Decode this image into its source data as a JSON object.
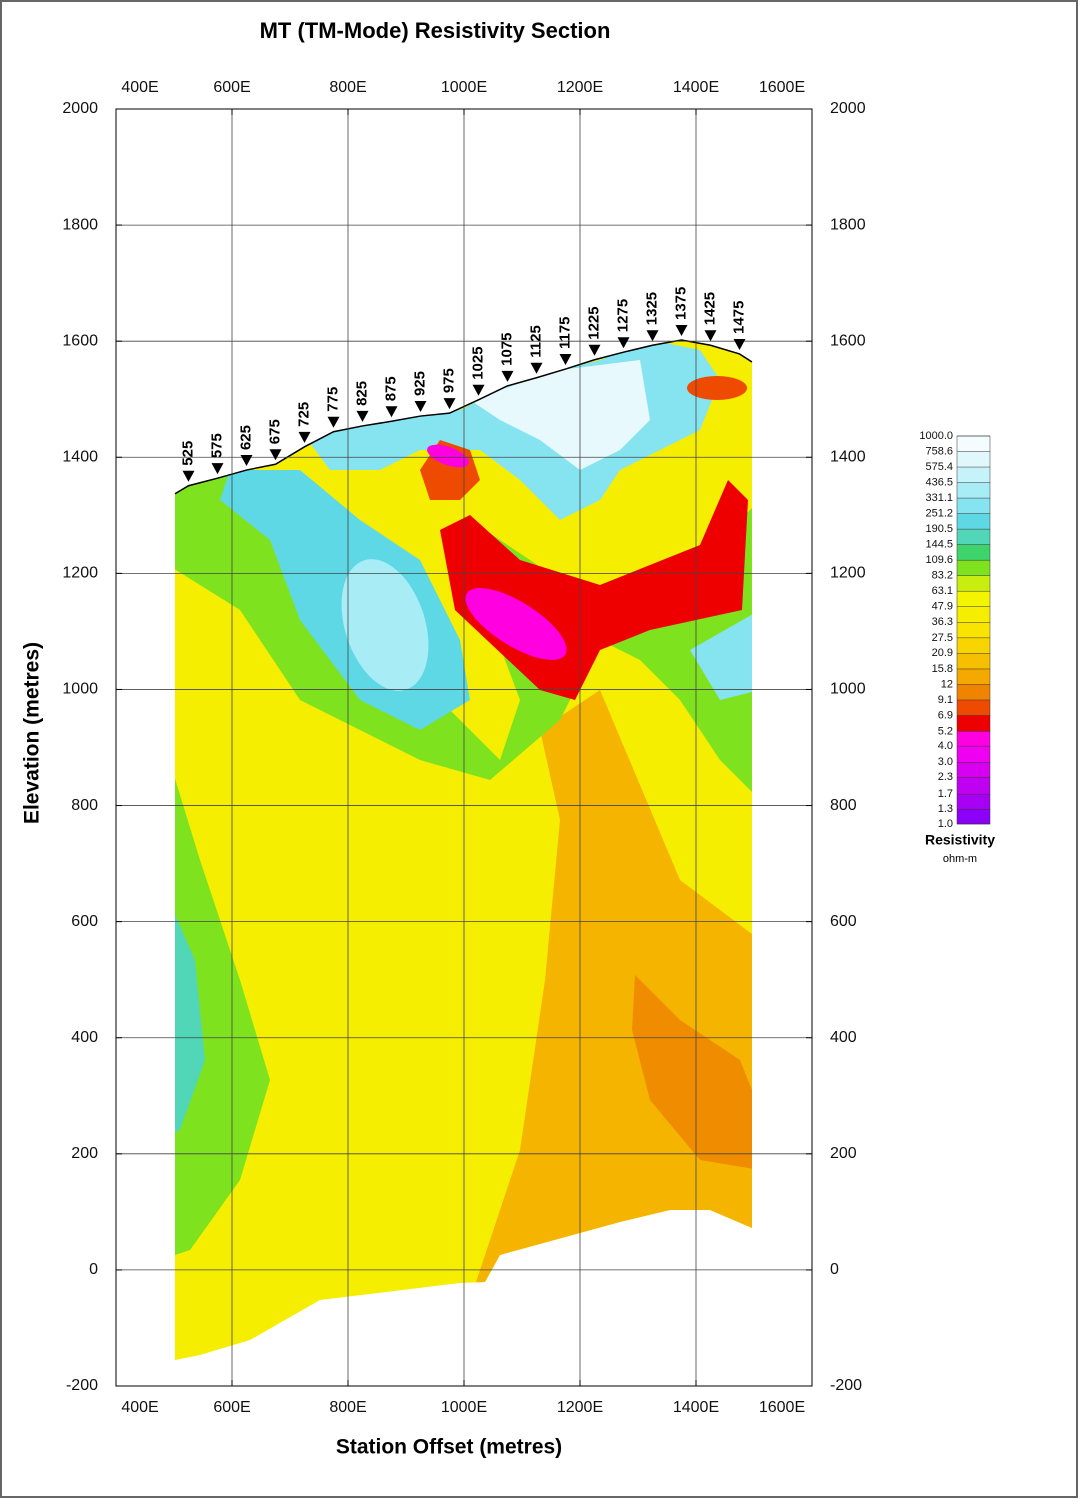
{
  "chart_data": {
    "type": "contour",
    "title": "MT (TM-Mode) Resistivity Section",
    "xlabel": "Station Offset (metres)",
    "ylabel": "Elevation (metres)",
    "xlim": [
      400,
      1600
    ],
    "ylim": [
      -200,
      2000
    ],
    "xticks": [
      {
        "value": 400,
        "label": "400E"
      },
      {
        "value": 600,
        "label": "600E"
      },
      {
        "value": 800,
        "label": "800E"
      },
      {
        "value": 1000,
        "label": "1000E"
      },
      {
        "value": 1200,
        "label": "1200E"
      },
      {
        "value": 1400,
        "label": "1400E"
      },
      {
        "value": 1600,
        "label": "1600E"
      }
    ],
    "yticks": [
      -200,
      0,
      200,
      400,
      600,
      800,
      1000,
      1200,
      1400,
      1600,
      1800,
      2000
    ],
    "grid": true,
    "stations": {
      "values": [
        525,
        575,
        625,
        675,
        725,
        775,
        825,
        875,
        925,
        975,
        1025,
        1075,
        1125,
        1175,
        1225,
        1275,
        1325,
        1375,
        1425,
        1475
      ],
      "elevation": [
        1351,
        1364,
        1378,
        1388,
        1418,
        1444,
        1454,
        1462,
        1471,
        1476,
        1499,
        1523,
        1537,
        1552,
        1568,
        1581,
        1593,
        1602,
        1593,
        1578
      ]
    },
    "colorbar": {
      "label": "Resistivity",
      "unit": "ohm-m",
      "scale": "log",
      "levels": [
        {
          "value": 1000,
          "label": "1000.0"
        },
        758.6,
        575.4,
        436.5,
        331.1,
        251.2,
        190.5,
        144.5,
        109.6,
        83.2,
        63.1,
        47.9,
        36.3,
        27.5,
        20.9,
        15.8,
        12.0,
        9.1,
        6.9,
        5.2,
        {
          "value": 4,
          "label": "4.0"
        },
        {
          "value": 3,
          "label": "3.0"
        },
        2.3,
        1.7,
        1.3,
        {
          "value": 1,
          "label": "1.0"
        }
      ],
      "colors": [
        "#f4fcff",
        "#e0f8fc",
        "#c6f2fa",
        "#a8ecf6",
        "#86e4f0",
        "#5ed8e4",
        "#52d6b8",
        "#3fd46a",
        "#7ee21e",
        "#c8ee10",
        "#f4f400",
        "#f6ee00",
        "#f8e400",
        "#f8d400",
        "#f6c000",
        "#f4a800",
        "#f08400",
        "#ee4a00",
        "#ee0000",
        "#ff00e0",
        "#f000f0",
        "#d800f0",
        "#c000f0",
        "#a800f4",
        "#8c00f8"
      ]
    }
  }
}
